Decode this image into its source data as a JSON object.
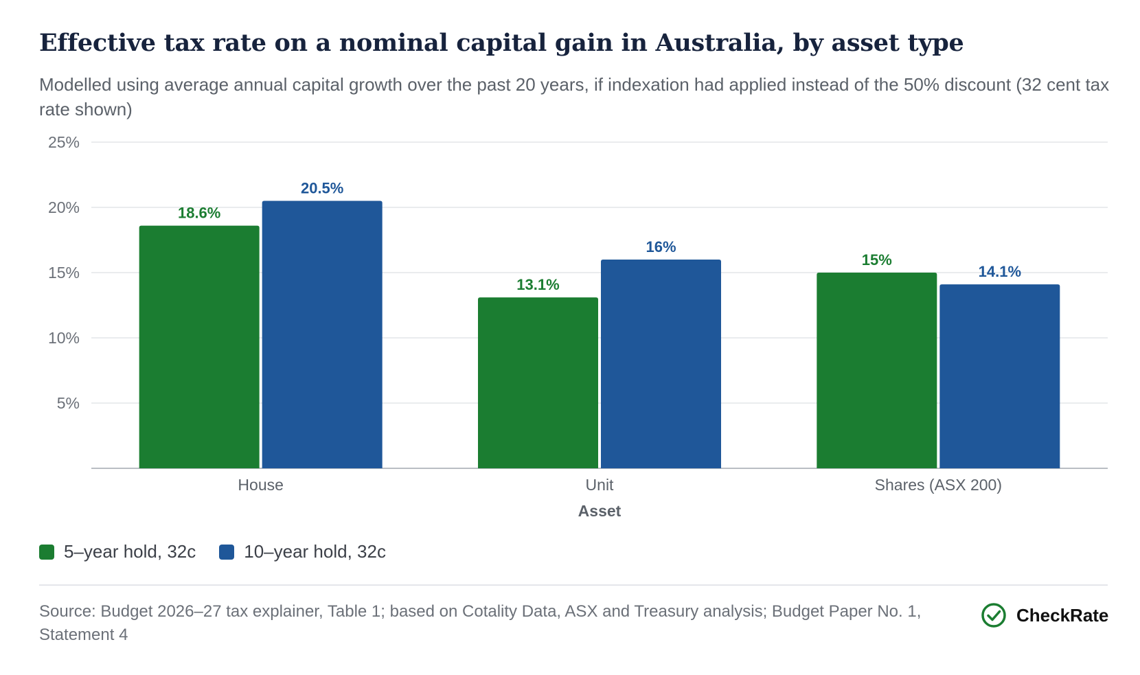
{
  "title": "Effective tax rate on a nominal capital gain in Australia, by asset type",
  "subtitle": "Modelled using average annual capital growth over the past 20 years, if indexation had applied instead of the 50% discount (32 cent tax rate shown)",
  "chart_data": {
    "type": "bar",
    "categories": [
      "House",
      "Unit",
      "Shares (ASX 200)"
    ],
    "series": [
      {
        "name": "5-year hold, 32c",
        "values": [
          18.6,
          13.1,
          15.0
        ],
        "labels": [
          "18.6%",
          "13.1%",
          "15%"
        ],
        "color": "#1b7d31"
      },
      {
        "name": "10-year hold, 32c",
        "values": [
          20.5,
          16.0,
          14.1
        ],
        "labels": [
          "20.5%",
          "16%",
          "14.1%"
        ],
        "color": "#1f5799"
      }
    ],
    "xlabel": "Asset",
    "ylabel": "",
    "ylim": [
      0,
      25
    ],
    "yticks": [
      5,
      10,
      15,
      20,
      25
    ],
    "ytick_labels": [
      "5%",
      "10%",
      "15%",
      "20%",
      "25%"
    ],
    "grid": true,
    "legend_position": "bottom-left"
  },
  "legend": {
    "items": [
      {
        "label": "5–year hold, 32c",
        "color": "#1b7d31"
      },
      {
        "label": "10–year hold, 32c",
        "color": "#1f5799"
      }
    ]
  },
  "source": "Source: Budget 2026–27 tax explainer, Table 1; based on Cotality Data, ASX and Treasury analysis; Budget Paper No. 1, Statement 4",
  "brand": {
    "name": "CheckRate",
    "icon": "check-circle-icon",
    "color": "#1b7d31"
  }
}
